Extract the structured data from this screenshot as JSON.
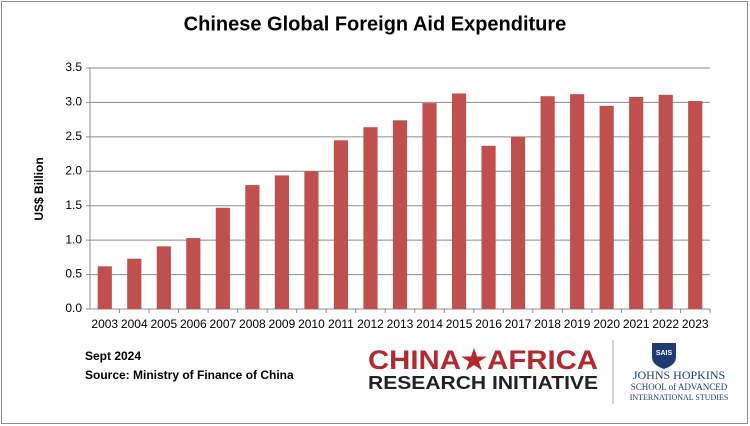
{
  "chart_data": {
    "type": "bar",
    "title": "Chinese Global Foreign Aid Expenditure",
    "y_label": "US$ Billion",
    "categories": [
      "2003",
      "2004",
      "2005",
      "2006",
      "2007",
      "2008",
      "2009",
      "2010",
      "2011",
      "2012",
      "2013",
      "2014",
      "2015",
      "2016",
      "2017",
      "2018",
      "2019",
      "2020",
      "2021",
      "2022",
      "2023"
    ],
    "values": [
      0.62,
      0.73,
      0.91,
      1.03,
      1.47,
      1.8,
      1.94,
      2.0,
      2.45,
      2.64,
      2.74,
      2.99,
      3.13,
      2.37,
      2.5,
      3.09,
      3.12,
      2.95,
      3.08,
      3.11,
      3.02
    ],
    "color": "#c0504d",
    "ylim": [
      0,
      3.5
    ],
    "yticks": [
      {
        "value": 0,
        "label": "0.0"
      },
      0.5,
      {
        "value": 1,
        "label": "1.0"
      },
      1.5,
      {
        "value": 2,
        "label": "2.0"
      },
      2.5,
      {
        "value": 3,
        "label": "3.0"
      },
      3.5
    ],
    "grid": true
  },
  "notes": {
    "date": "Sept 2024",
    "source": "Source: Ministry of Finance of China"
  },
  "logos": {
    "cari_top": "CHINA★AFRICA",
    "cari_bottom": "RESEARCH INITIATIVE",
    "sais_badge": "SAIS",
    "jhu_name": "JOHNS HOPKINS",
    "jhu_line1": "SCHOOL of ADVANCED",
    "jhu_line2": "INTERNATIONAL STUDIES"
  }
}
